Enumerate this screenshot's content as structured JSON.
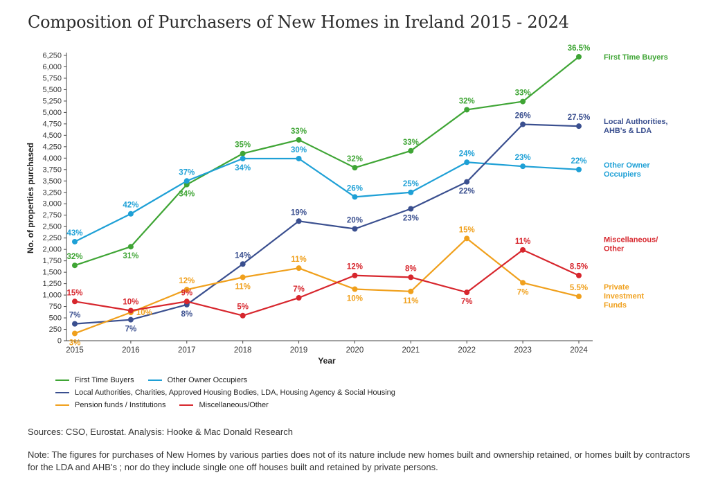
{
  "title": "Composition of Purchasers of New Homes in Ireland 2015 - 2024",
  "chart_data": {
    "type": "line",
    "title": "Composition of Purchasers of New Homes in Ireland 2015 - 2024",
    "xlabel": "Year",
    "ylabel": "No. of properties purchased",
    "x": [
      2015,
      2016,
      2017,
      2018,
      2019,
      2020,
      2021,
      2022,
      2023,
      2024
    ],
    "ylim": [
      0,
      6250
    ],
    "yticks": [
      0,
      250,
      500,
      750,
      1000,
      1250,
      1500,
      1750,
      2000,
      2250,
      2500,
      2750,
      3000,
      3250,
      3500,
      3750,
      4000,
      4250,
      4500,
      4750,
      5000,
      5250,
      5500,
      5750,
      6000,
      6250
    ],
    "ytick_labels": [
      "0",
      "250",
      "500",
      "750",
      "1,000",
      "1,250",
      "1,500",
      "1,750",
      "2,000",
      "2,250",
      "2,500",
      "2,750",
      "3,000",
      "3,250",
      "3,500",
      "3,750",
      "4,000",
      "4,250",
      "4,500",
      "4,750",
      "5,000",
      "5,250",
      "5,500",
      "5,750",
      "6,000",
      "6,250"
    ],
    "grid": false,
    "series": [
      {
        "id": "ftb",
        "color": "#3fa535",
        "values": [
          1650,
          2060,
          3420,
          4100,
          4400,
          3790,
          4160,
          5060,
          5240,
          6220
        ],
        "labels": [
          "32%",
          "31%",
          "34%",
          "35%",
          "33%",
          "32%",
          "33%",
          "32%",
          "33%",
          "36.5%"
        ],
        "label_pos": [
          "above",
          "below",
          "below",
          "above",
          "above",
          "above",
          "above",
          "above",
          "above",
          "above"
        ],
        "end_label": [
          "First Time Buyers"
        ]
      },
      {
        "id": "ooo",
        "color": "#1ea0d6",
        "values": [
          2170,
          2780,
          3500,
          3990,
          3990,
          3150,
          3250,
          3910,
          3820,
          3750
        ],
        "labels": [
          "43%",
          "42%",
          "37%",
          "34%",
          "30%",
          "26%",
          "25%",
          "24%",
          "23%",
          "22%"
        ],
        "label_pos": [
          "above",
          "above",
          "above",
          "below",
          "above",
          "above",
          "above",
          "above",
          "above",
          "above"
        ],
        "end_label": [
          "Other Owner",
          "Occupiers"
        ]
      },
      {
        "id": "la",
        "color": "#3a4f8f",
        "values": [
          370,
          460,
          790,
          1680,
          2620,
          2450,
          2890,
          3480,
          4740,
          4700
        ],
        "labels": [
          "7%",
          "7%",
          "8%",
          "14%",
          "19%",
          "20%",
          "23%",
          "22%",
          "26%",
          "27.5%"
        ],
        "label_pos": [
          "above",
          "below",
          "below",
          "above",
          "above",
          "above",
          "below",
          "below",
          "above",
          "above"
        ],
        "end_label": [
          "Local Authorities,",
          "AHB's & LDA"
        ]
      },
      {
        "id": "pf",
        "color": "#f0a01c",
        "values": [
          160,
          620,
          1120,
          1390,
          1590,
          1130,
          1080,
          2240,
          1270,
          970
        ],
        "labels": [
          "3%",
          "10%",
          "12%",
          "11%",
          "11%",
          "10%",
          "11%",
          "15%",
          "7%",
          "5.5%"
        ],
        "label_pos": [
          "below",
          "right",
          "above",
          "below",
          "above",
          "below",
          "below",
          "above",
          "below",
          "above"
        ],
        "end_label": [
          "Private",
          "Investment",
          "Funds"
        ]
      },
      {
        "id": "misc",
        "color": "#d7262d",
        "values": [
          860,
          660,
          860,
          550,
          940,
          1430,
          1390,
          1060,
          1990,
          1430
        ],
        "labels": [
          "15%",
          "10%",
          "9%",
          "5%",
          "7%",
          "12%",
          "8%",
          "7%",
          "11%",
          "8.5%"
        ],
        "label_pos": [
          "above",
          "above",
          "above",
          "above",
          "above",
          "above",
          "above",
          "below",
          "above",
          "above"
        ],
        "end_label": [
          "Miscellaneous/",
          "Other"
        ]
      }
    ],
    "legend": [
      [
        "First Time Buyers",
        "Other Owner Occupiers"
      ],
      [
        "Local Authorities, Charities, Approved Housing Bodies, LDA, Housing Agency & Social Housing"
      ],
      [
        "Pension funds / Institutions",
        "Miscellaneous/Other"
      ]
    ],
    "legend_colors": [
      [
        "#3fa535",
        "#1ea0d6"
      ],
      [
        "#3a4f8f"
      ],
      [
        "#f0a01c",
        "#d7262d"
      ]
    ],
    "legend_placement": "bottom-left"
  },
  "sources": "Sources: CSO, Eurostat.  Analysis: Hooke & Mac Donald Research",
  "note": "Note: The figures for purchases of New Homes by various parties does not of its nature include new homes built and ownership retained, or homes built by contractors for the LDA and AHB's ; nor do they include single one off houses built and retained by private persons."
}
